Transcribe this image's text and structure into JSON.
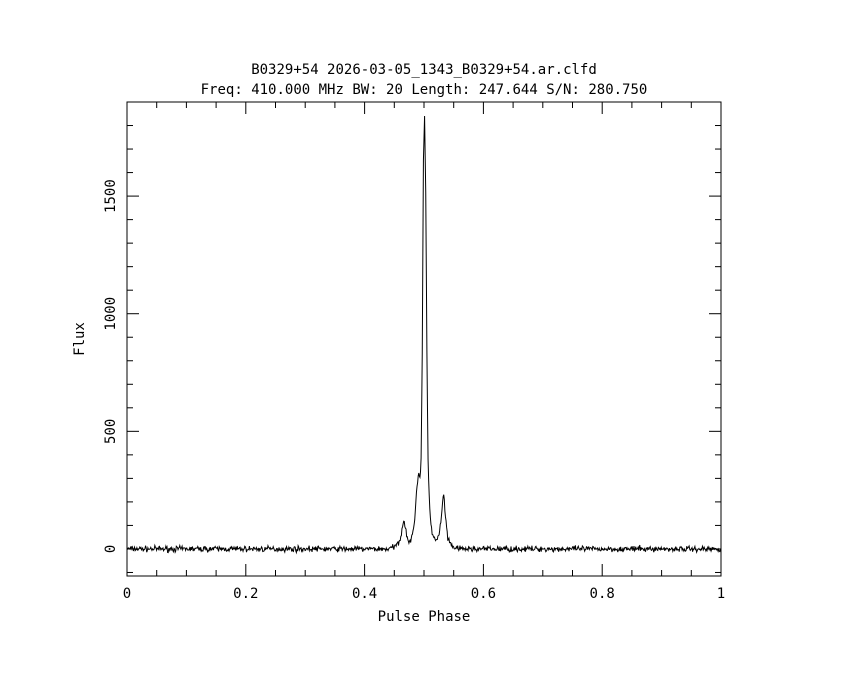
{
  "chart_data": {
    "type": "line",
    "title": "B0329+54 2026-03-05_1343_B0329+54.ar.clfd",
    "subtitle": "Freq: 410.000 MHz BW: 20 Length: 247.644 S/N: 280.750",
    "xlabel": "Pulse Phase",
    "ylabel": "Flux",
    "xlim": [
      0,
      1
    ],
    "ylim": [
      -115,
      1900
    ],
    "x_ticks": [
      0,
      0.2,
      0.4,
      0.6,
      0.8,
      1
    ],
    "x_tick_labels": [
      "0",
      "0.2",
      "0.4",
      "0.6",
      "0.8",
      "1"
    ],
    "y_ticks": [
      0,
      500,
      1000,
      1500
    ],
    "y_tick_labels": [
      "0",
      "500",
      "1000",
      "1500"
    ],
    "grid": false,
    "line_color": "#000000",
    "baseline_noise": 12,
    "series": [
      {
        "x": [
          0.0,
          0.44,
          0.452,
          0.46,
          0.466,
          0.47,
          0.474,
          0.48,
          0.484,
          0.488,
          0.491,
          0.493,
          0.495,
          0.497,
          0.499,
          0.501,
          0.503,
          0.505,
          0.507,
          0.51,
          0.514,
          0.518,
          0.522,
          0.526,
          0.53,
          0.533,
          0.536,
          0.54,
          0.546,
          0.552,
          0.56,
          0.6,
          1.0
        ],
        "y": [
          0,
          0,
          10,
          40,
          130,
          70,
          30,
          45,
          120,
          260,
          330,
          300,
          360,
          800,
          1650,
          1830,
          1500,
          800,
          350,
          150,
          60,
          40,
          35,
          70,
          150,
          245,
          140,
          40,
          15,
          5,
          0,
          0,
          0
        ]
      }
    ]
  }
}
